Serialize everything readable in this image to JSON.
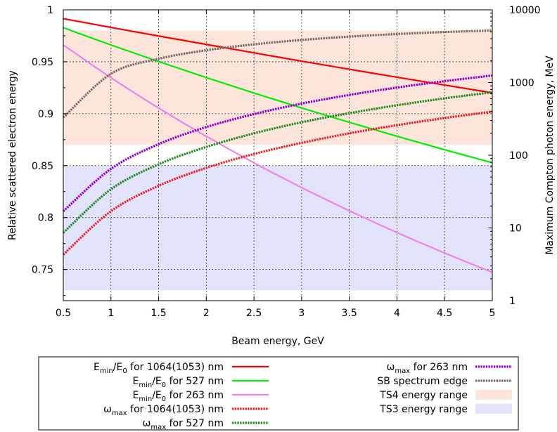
{
  "chart_data": {
    "type": "line",
    "xlabel": "Beam energy, GeV",
    "ylabel": "Relative scattered electron energy",
    "y2label": "Maximum Compton photon energy, MeV",
    "xlim": [
      0.5,
      5
    ],
    "ylim": [
      0.72,
      1
    ],
    "y2lim": [
      1,
      10000
    ],
    "y2scale": "log",
    "x_ticks": [
      "0.5",
      "1",
      "1.5",
      "2",
      "2.5",
      "3",
      "3.5",
      "4",
      "4.5",
      "5"
    ],
    "y_ticks": [
      "0.75",
      "0.8",
      "0.85",
      "0.9",
      "0.95",
      "1"
    ],
    "y2_ticks": [
      "1",
      "10",
      "100",
      "1000",
      "10000"
    ],
    "grid": true,
    "legend_position": "bottom",
    "bands": [
      {
        "name": "TS4 energy range",
        "y_from": 0.87,
        "y_to": 0.98,
        "color": "#fde5dc"
      },
      {
        "name": "TS3 energy range",
        "y_from": 0.73,
        "y_to": 0.85,
        "color": "#e2e2fb"
      }
    ],
    "series": [
      {
        "name": "Emin/E0 for 1064(1053) nm",
        "name_main": "E",
        "name_sub": "min",
        "name_mid": "/E",
        "name_sub2": "0",
        "name_tail": " for 1064(1053) nm",
        "axis": "left",
        "color": "#ff0000",
        "dash": false,
        "x": [
          0.5,
          1,
          1.5,
          2,
          2.5,
          3,
          3.5,
          4,
          4.5,
          5
        ],
        "y": [
          0.9915,
          0.9831,
          0.9748,
          0.9667,
          0.9586,
          0.9506,
          0.9428,
          0.9351,
          0.9276,
          0.9201
        ]
      },
      {
        "name": "Emin/E0 for 527 nm",
        "name_main": "E",
        "name_sub": "min",
        "name_mid": "/E",
        "name_sub2": "0",
        "name_tail": " for 527 nm",
        "axis": "left",
        "color": "#00ee00",
        "dash": false,
        "x": [
          0.5,
          1,
          1.5,
          2,
          2.5,
          3,
          3.5,
          4,
          4.5,
          5
        ],
        "y": [
          0.9828,
          0.9662,
          0.9502,
          0.9348,
          0.9199,
          0.9055,
          0.8917,
          0.8783,
          0.8653,
          0.8528
        ]
      },
      {
        "name": "Emin/E0 for 263 nm",
        "name_main": "E",
        "name_sub": "min",
        "name_mid": "/E",
        "name_sub2": "0",
        "name_tail": " for 263 nm",
        "axis": "left",
        "color": "#ee82ee",
        "dash": false,
        "x": [
          0.5,
          1,
          1.5,
          2,
          2.5,
          3,
          3.5,
          4,
          4.5,
          5
        ],
        "y": [
          0.9662,
          0.9347,
          0.9054,
          0.8782,
          0.8527,
          0.8289,
          0.8066,
          0.7856,
          0.7659,
          0.7473
        ]
      },
      {
        "name": "ωmax for 1064(1053) nm",
        "name_main": "ω",
        "name_sub": "max",
        "name_mid": "",
        "name_sub2": "",
        "name_tail": " for 1064(1053) nm",
        "axis": "right",
        "color": "#ee2222",
        "dash": true,
        "x": [
          0.5,
          1,
          1.5,
          2,
          2.5,
          3,
          3.5,
          4,
          4.5,
          5
        ],
        "y": [
          4.3,
          17,
          38,
          67,
          104,
          148,
          200,
          259,
          325,
          398
        ]
      },
      {
        "name": "ωmax for 527 nm",
        "name_main": "ω",
        "name_sub": "max",
        "name_mid": "",
        "name_sub2": "",
        "name_tail": " for 527 nm",
        "axis": "right",
        "color": "#228b22",
        "dash": true,
        "x": [
          0.5,
          1,
          1.5,
          2,
          2.5,
          3,
          3.5,
          4,
          4.5,
          5
        ],
        "y": [
          8.6,
          34,
          75,
          130,
          200,
          284,
          379,
          487,
          606,
          735
        ]
      },
      {
        "name": "ωmax for 263 nm",
        "name_main": "ω",
        "name_sub": "max",
        "name_mid": "",
        "name_sub2": "",
        "name_tail": " for 263 nm",
        "axis": "right",
        "color": "#9400d3",
        "dash": true,
        "x": [
          0.5,
          1,
          1.5,
          2,
          2.5,
          3,
          3.5,
          4,
          4.5,
          5
        ],
        "y": [
          17,
          65,
          142,
          244,
          368,
          513,
          675,
          853,
          1045,
          1250
        ]
      },
      {
        "name": "SB spectrum edge",
        "name_main": "SB spectrum edge",
        "name_sub": "",
        "name_mid": "",
        "name_sub2": "",
        "name_tail": "",
        "axis": "right",
        "color": "#7a6a6a",
        "dash": true,
        "x": [
          0.5,
          1,
          1.5,
          2,
          2.5,
          3,
          3.5,
          4,
          4.5,
          5
        ],
        "y": [
          330,
          1320,
          2120,
          2780,
          3350,
          3850,
          4280,
          4650,
          4950,
          5200
        ]
      }
    ],
    "legend_entries": [
      {
        "ref": 0
      },
      {
        "ref": 1
      },
      {
        "ref": 2
      },
      {
        "ref": 3
      },
      {
        "ref": 4
      },
      {
        "ref": 5
      },
      {
        "ref": 6
      },
      {
        "band": 0
      },
      {
        "band": 1
      }
    ]
  }
}
